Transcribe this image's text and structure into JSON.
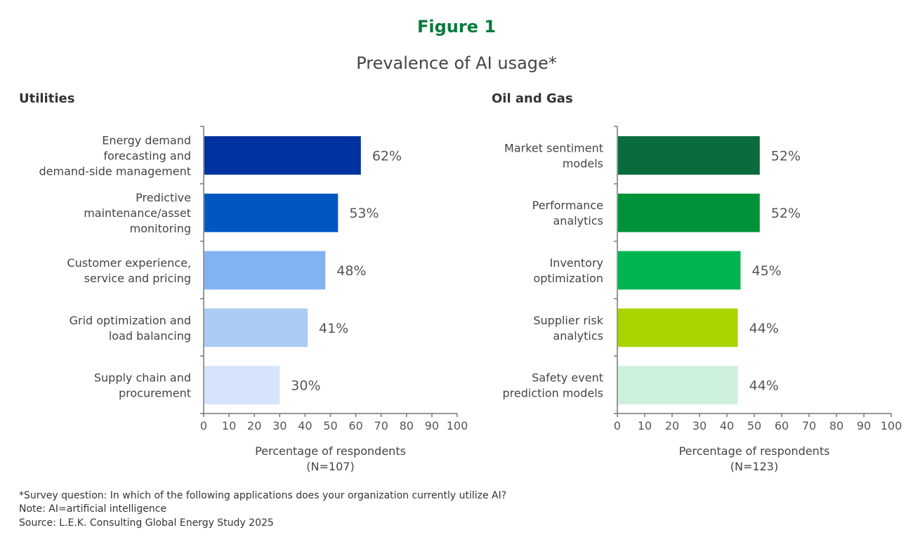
{
  "figure_label": "Figure 1",
  "title": "Prevalence of AI usage*",
  "chart_data": [
    {
      "type": "bar",
      "orientation": "horizontal",
      "title": "Utilities",
      "categories": [
        [
          "Energy demand",
          "forecasting and",
          "demand-side management"
        ],
        [
          "Predictive",
          "maintenance/asset",
          "monitoring"
        ],
        [
          "Customer experience,",
          "service and pricing"
        ],
        [
          "Grid optimization and",
          "load balancing"
        ],
        [
          "Supply chain and",
          "procurement"
        ]
      ],
      "values": [
        62,
        53,
        48,
        41,
        30
      ],
      "data_labels": [
        "62%",
        "53%",
        "48%",
        "41%",
        "30%"
      ],
      "colors": [
        "#0033a0",
        "#0057c2",
        "#82b2f2",
        "#abcbf5",
        "#d5e4fa"
      ],
      "xlim": [
        0,
        100
      ],
      "xticks": [
        "0",
        "10",
        "20",
        "30",
        "40",
        "50",
        "60",
        "70",
        "80",
        "90",
        "100"
      ],
      "xlabel": [
        "Percentage of respondents",
        "(N=107)"
      ],
      "grid": false
    },
    {
      "type": "bar",
      "orientation": "horizontal",
      "title": "Oil and Gas",
      "categories": [
        [
          "Market sentiment",
          "models"
        ],
        [
          "Performance",
          "analytics"
        ],
        [
          "Inventory",
          "optimization"
        ],
        [
          "Supplier risk",
          "analytics"
        ],
        [
          "Safety event",
          "prediction models"
        ]
      ],
      "values": [
        52,
        52,
        45,
        44,
        44
      ],
      "data_labels": [
        "52%",
        "52%",
        "45%",
        "44%",
        "44%"
      ],
      "colors": [
        "#0a6b3d",
        "#009239",
        "#00b550",
        "#a8d400",
        "#cdf0dc"
      ],
      "xlim": [
        0,
        100
      ],
      "xticks": [
        "0",
        "10",
        "20",
        "30",
        "40",
        "50",
        "60",
        "70",
        "80",
        "90",
        "100"
      ],
      "xlabel": [
        "Percentage of respondents",
        "(N=123)"
      ],
      "grid": false
    }
  ],
  "footnotes": [
    "*Survey question: In which of the following applications does your organization currently utilize AI?",
    "Note: AI=artificial intelligence",
    "Source: L.E.K. Consulting Global Energy Study 2025"
  ]
}
